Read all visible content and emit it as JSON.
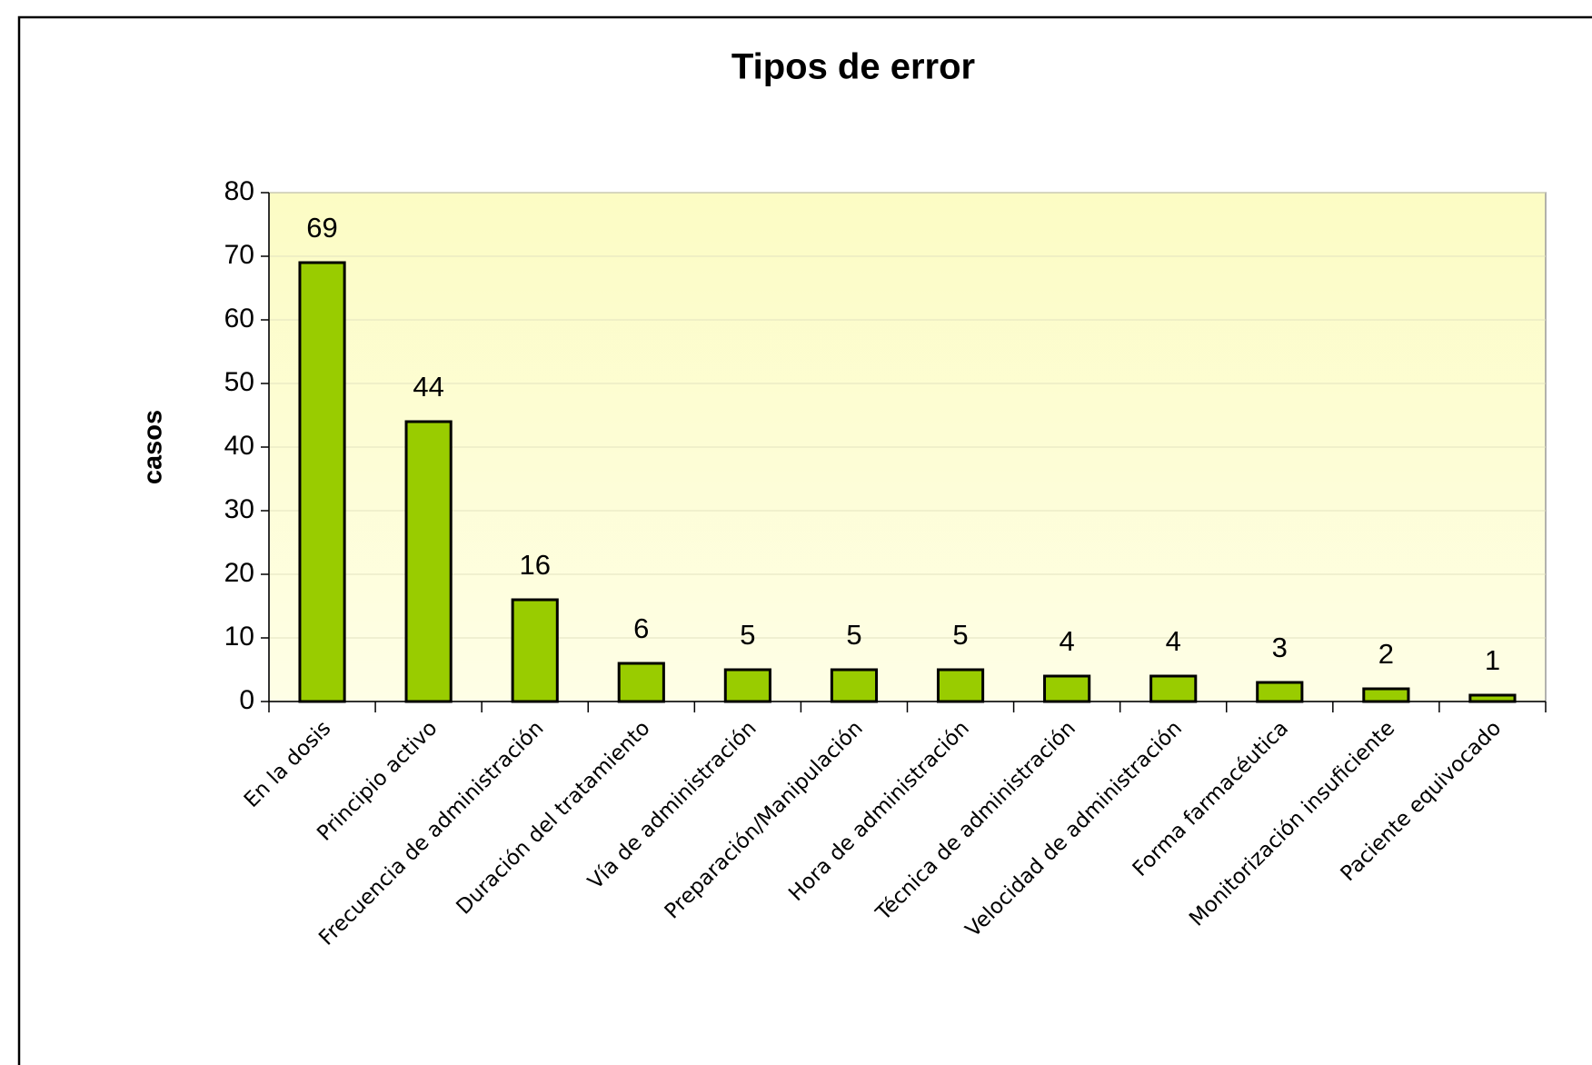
{
  "chart_data": {
    "type": "bar",
    "title": "Tipos de error",
    "ylabel": "casos",
    "categories": [
      "En la dosis",
      "Principio activo",
      "Frecuencia de administración",
      "Duración del tratamiento",
      "Vía de administración",
      "Preparación/Manipulación",
      "Hora de administración",
      "Técnica de administración",
      "Velocidad de administración",
      "Forma farmacéutica",
      "Monitorización insuficiente",
      "Paciente equivocado"
    ],
    "values": [
      69,
      44,
      16,
      6,
      5,
      5,
      5,
      4,
      4,
      3,
      2,
      1
    ],
    "color": "#99cc00",
    "ylim": [
      0,
      80
    ],
    "yticks": [
      0,
      10,
      20,
      30,
      40,
      50,
      60,
      70,
      80
    ],
    "grid": true
  }
}
